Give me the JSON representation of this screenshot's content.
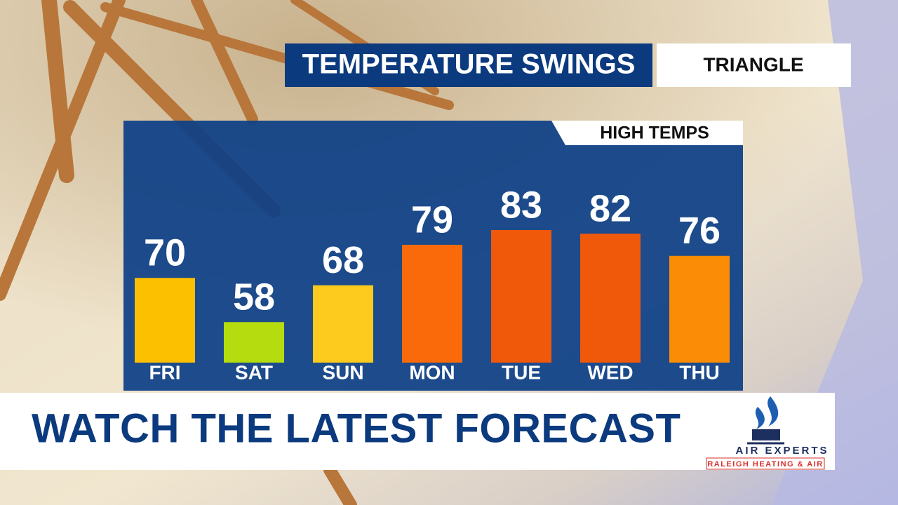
{
  "chart_data": {
    "type": "bar",
    "title": "TEMPERATURE SWINGS",
    "subtitle": "HIGH TEMPS",
    "categories": [
      "FRI",
      "SAT",
      "SUN",
      "MON",
      "TUE",
      "WED",
      "THU"
    ],
    "values": [
      70,
      58,
      68,
      79,
      83,
      82,
      76
    ],
    "colors": [
      "#fdc000",
      "#b5dc0e",
      "#fdcb1e",
      "#fb6a0a",
      "#f0580a",
      "#f0580a",
      "#fb8c05"
    ],
    "ylim": [
      47,
      95
    ]
  },
  "location": "TRIANGLE",
  "banner": "WATCH THE LATEST FORECAST",
  "sponsor": {
    "name": "AIR EXPERTS",
    "tagline": "RALEIGH HEATING & AIR"
  }
}
